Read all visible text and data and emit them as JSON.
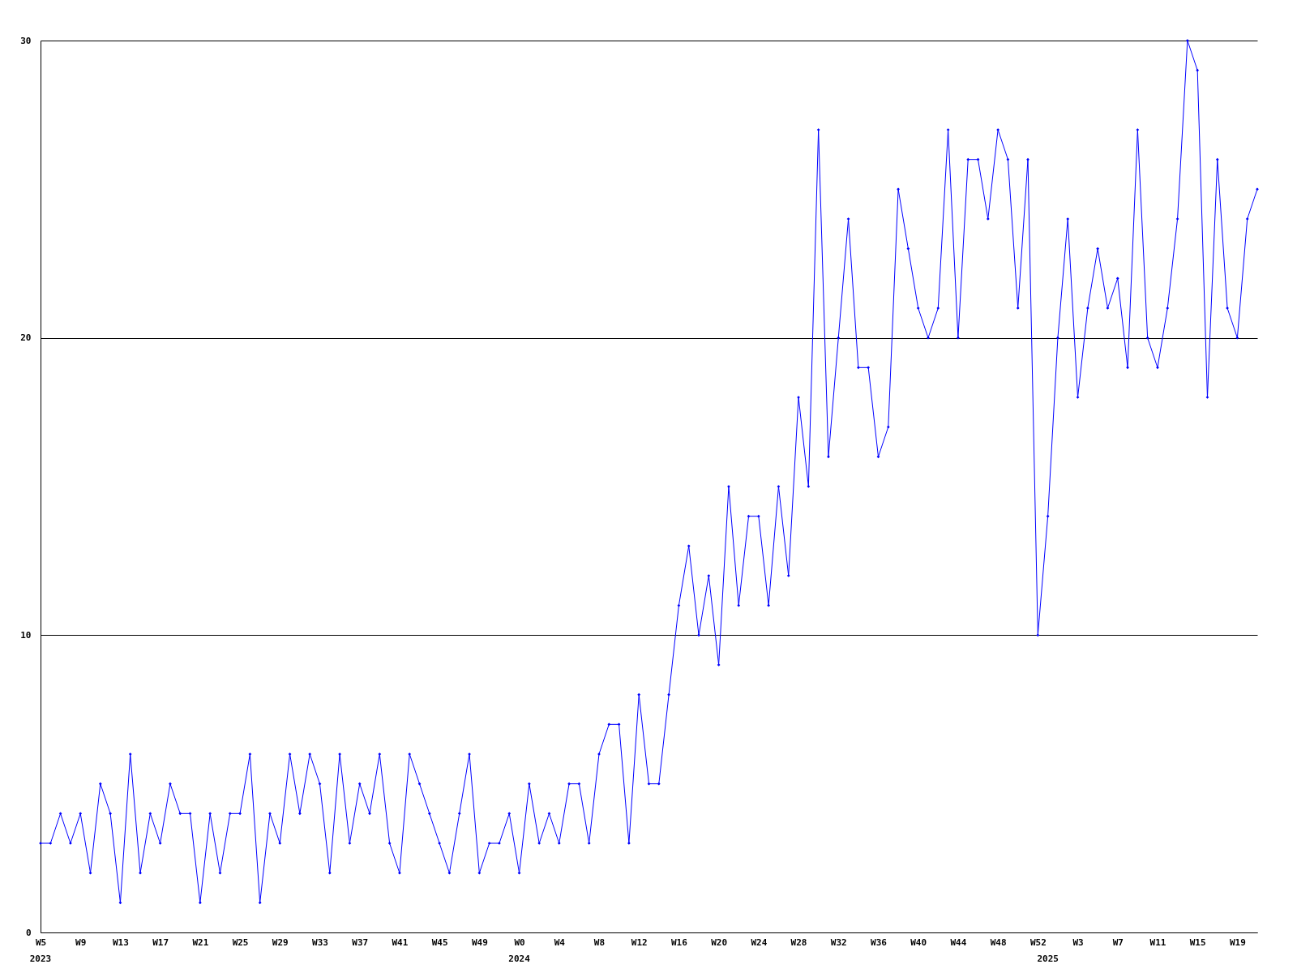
{
  "chart_data": {
    "type": "line",
    "categories": [
      "W5",
      null,
      null,
      null,
      "W9",
      null,
      null,
      null,
      "W13",
      null,
      null,
      null,
      "W17",
      null,
      null,
      null,
      "W21",
      null,
      null,
      null,
      "W25",
      null,
      null,
      null,
      "W29",
      null,
      null,
      null,
      "W33",
      null,
      null,
      null,
      "W37",
      null,
      null,
      null,
      "W41",
      null,
      null,
      null,
      "W45",
      null,
      null,
      null,
      "W49",
      null,
      null,
      null,
      "W0",
      null,
      null,
      null,
      "W4",
      null,
      null,
      null,
      "W8",
      null,
      null,
      null,
      "W12",
      null,
      null,
      null,
      "W16",
      null,
      null,
      null,
      "W20",
      null,
      null,
      null,
      "W24",
      null,
      null,
      null,
      "W28",
      null,
      null,
      null,
      "W32",
      null,
      null,
      null,
      "W36",
      null,
      null,
      null,
      "W40",
      null,
      null,
      null,
      "W44",
      null,
      null,
      null,
      "W48",
      null,
      null,
      null,
      "W52",
      null,
      null,
      null,
      "W3",
      null,
      null,
      null,
      "W7",
      null,
      null,
      null,
      "W11",
      null,
      null,
      null,
      "W15",
      null,
      null,
      null,
      "W19",
      null,
      null
    ],
    "series": [
      {
        "color": "#0000ff",
        "values": [
          3,
          3,
          4,
          3,
          4,
          2,
          5,
          4,
          1,
          6,
          2,
          4,
          3,
          5,
          4,
          4,
          1,
          4,
          2,
          4,
          4,
          6,
          1,
          4,
          3,
          6,
          4,
          6,
          5,
          2,
          6,
          3,
          5,
          4,
          6,
          3,
          2,
          6,
          5,
          4,
          3,
          2,
          4,
          6,
          2,
          3,
          3,
          4,
          2,
          5,
          3,
          4,
          3,
          5,
          5,
          3,
          6,
          7,
          7,
          3,
          8,
          5,
          5,
          8,
          11,
          13,
          10,
          12,
          9,
          15,
          11,
          14,
          14,
          11,
          15,
          12,
          18,
          15,
          27,
          16,
          20,
          24,
          19,
          19,
          16,
          17,
          25,
          23,
          21,
          20,
          21,
          27,
          20,
          26,
          26,
          24,
          27,
          26,
          21,
          26,
          10,
          14,
          20,
          24,
          18,
          21,
          23,
          21,
          22,
          19,
          27,
          20,
          19,
          21,
          24,
          30,
          29,
          18,
          26,
          21,
          20,
          24,
          25
        ]
      }
    ],
    "ylim": [
      0,
      30
    ],
    "yticks": [
      0,
      10,
      20,
      30
    ],
    "grid": "y",
    "marker": "diamond",
    "line_style": "solid",
    "annotations": [
      "2023",
      "2024",
      "2025"
    ]
  }
}
